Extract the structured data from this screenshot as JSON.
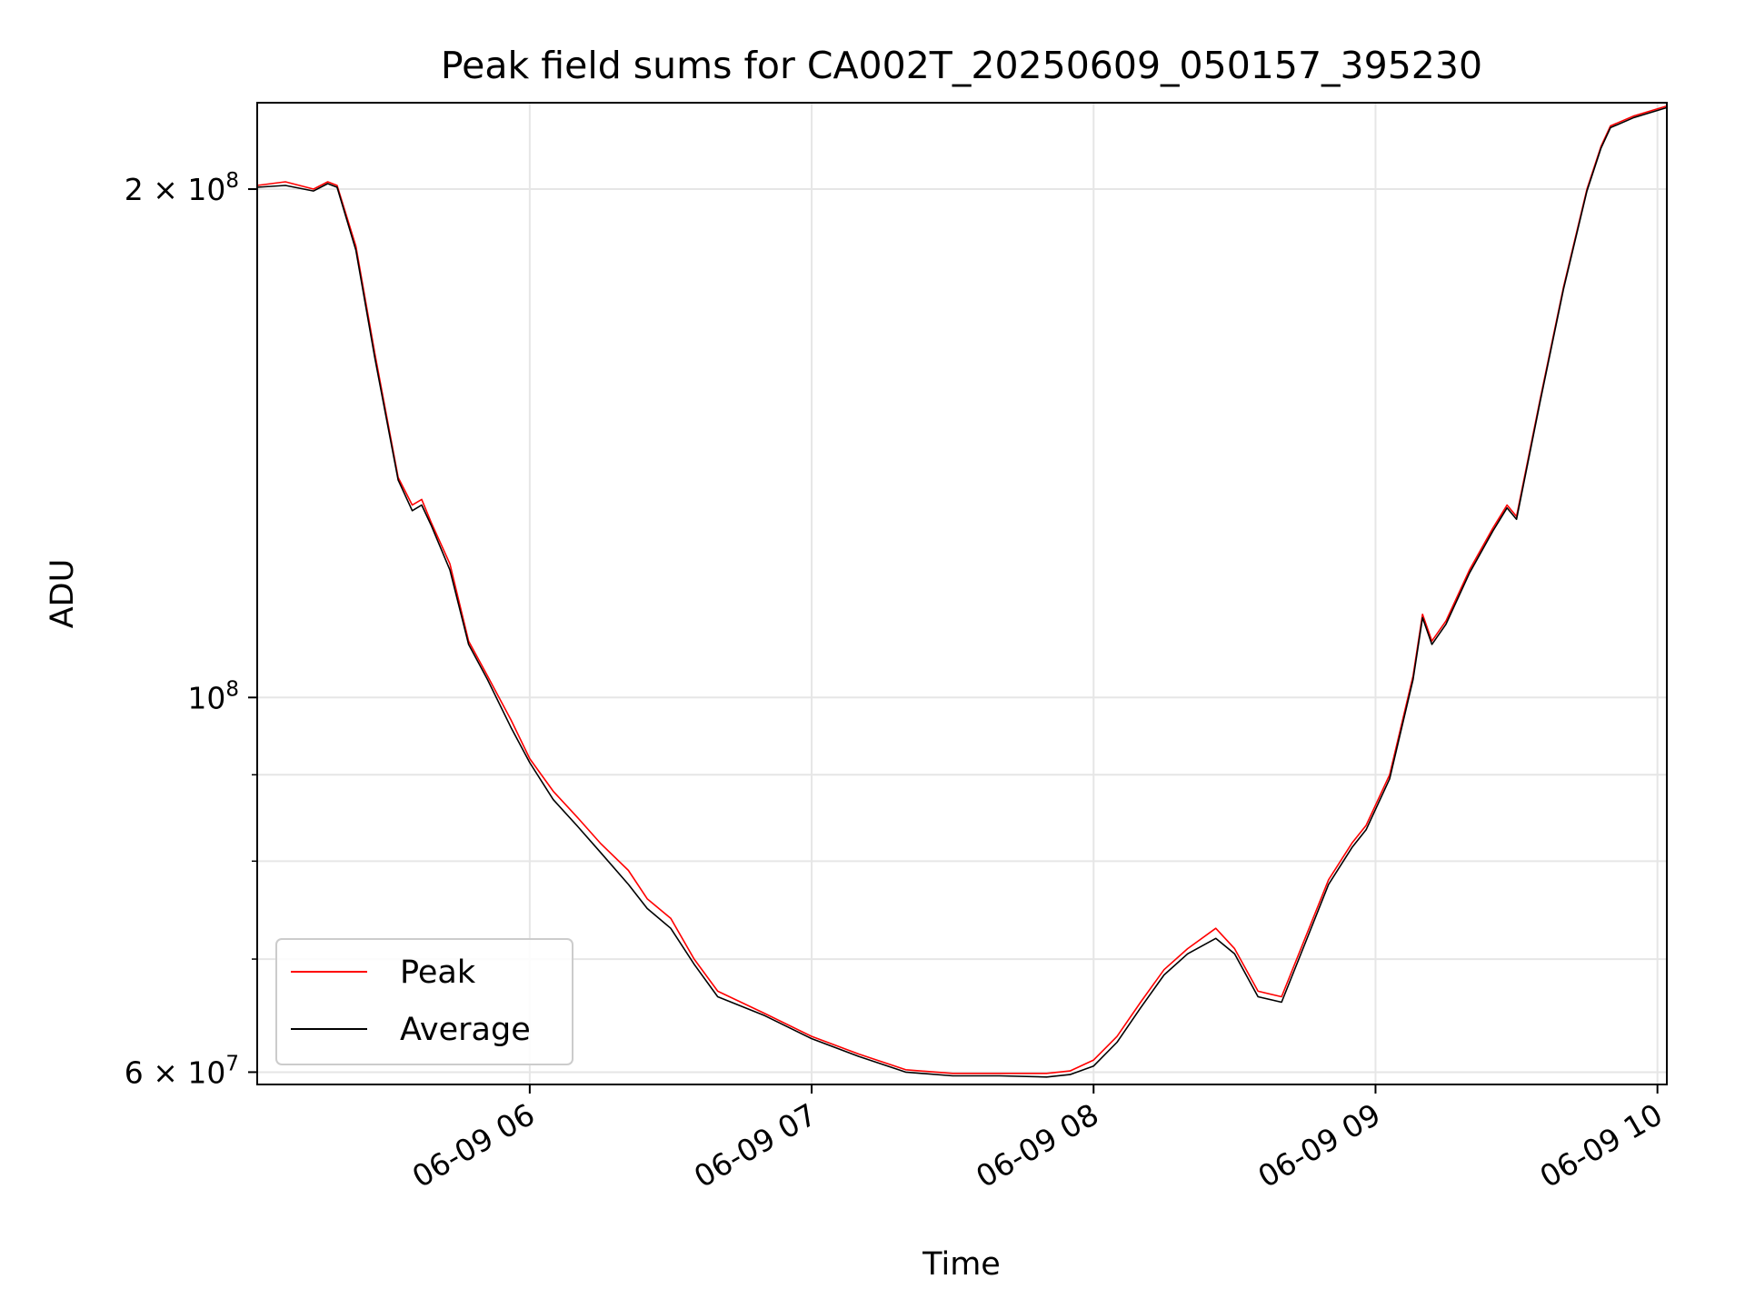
{
  "chart_data": {
    "type": "line",
    "title": "Peak field sums for CA002T_20250609_050157_395230",
    "xlabel": "Time",
    "ylabel": "ADU",
    "y_scale": "log",
    "grid": true,
    "legend_position": "lower-left",
    "x_range": [
      "2025-06-09 05:02",
      "2025-06-09 10:02"
    ],
    "ylim": [
      59000000,
      225000000
    ],
    "x_ticks": [
      {
        "value": "2025-06-09 06:00",
        "label": "06-09 06"
      },
      {
        "value": "2025-06-09 07:00",
        "label": "06-09 07"
      },
      {
        "value": "2025-06-09 08:00",
        "label": "06-09 08"
      },
      {
        "value": "2025-06-09 09:00",
        "label": "06-09 09"
      },
      {
        "value": "2025-06-09 10:00",
        "label": "06-09 10"
      }
    ],
    "y_ticks": [
      {
        "value": 200000000,
        "label": "2 × 10",
        "exp": "8"
      },
      {
        "value": 100000000,
        "label": "10",
        "exp": "8"
      },
      {
        "value": 60000000,
        "label": "6 × 10",
        "exp": "7"
      }
    ],
    "y_minor_ticks": [
      70000000,
      80000000,
      90000000
    ],
    "colors": {
      "peak": "#ff0000",
      "average": "#000000",
      "grid": "#e6e6e6"
    },
    "series": [
      {
        "name": "Peak",
        "color": "#ff0000",
        "x": [
          "2025-06-09 05:02",
          "2025-06-09 05:08",
          "2025-06-09 05:14",
          "2025-06-09 05:17",
          "2025-06-09 05:19",
          "2025-06-09 05:23",
          "2025-06-09 05:27",
          "2025-06-09 05:32",
          "2025-06-09 05:35",
          "2025-06-09 05:37",
          "2025-06-09 05:39",
          "2025-06-09 05:43",
          "2025-06-09 05:47",
          "2025-06-09 05:51",
          "2025-06-09 05:56",
          "2025-06-09 06:00",
          "2025-06-09 06:05",
          "2025-06-09 06:10",
          "2025-06-09 06:15",
          "2025-06-09 06:21",
          "2025-06-09 06:25",
          "2025-06-09 06:30",
          "2025-06-09 06:35",
          "2025-06-09 06:40",
          "2025-06-09 06:50",
          "2025-06-09 07:00",
          "2025-06-09 07:10",
          "2025-06-09 07:20",
          "2025-06-09 07:30",
          "2025-06-09 07:40",
          "2025-06-09 07:50",
          "2025-06-09 07:55",
          "2025-06-09 08:00",
          "2025-06-09 08:05",
          "2025-06-09 08:10",
          "2025-06-09 08:15",
          "2025-06-09 08:20",
          "2025-06-09 08:26",
          "2025-06-09 08:30",
          "2025-06-09 08:35",
          "2025-06-09 08:40",
          "2025-06-09 08:45",
          "2025-06-09 08:50",
          "2025-06-09 08:55",
          "2025-06-09 08:58",
          "2025-06-09 09:03",
          "2025-06-09 09:08",
          "2025-06-09 09:10",
          "2025-06-09 09:12",
          "2025-06-09 09:15",
          "2025-06-09 09:20",
          "2025-06-09 09:25",
          "2025-06-09 09:28",
          "2025-06-09 09:30",
          "2025-06-09 09:35",
          "2025-06-09 09:40",
          "2025-06-09 09:45",
          "2025-06-09 09:48",
          "2025-06-09 09:50",
          "2025-06-09 09:55",
          "2025-06-09 10:02"
        ],
        "values": [
          201000000,
          202000000,
          200000000,
          202000000,
          201000000,
          185000000,
          160000000,
          135000000,
          130000000,
          131000000,
          127000000,
          120000000,
          108000000,
          103000000,
          97000000,
          92000000,
          88000000,
          85000000,
          82000000,
          79000000,
          76000000,
          74000000,
          70000000,
          67000000,
          65000000,
          63000000,
          61500000,
          60200000,
          59900000,
          59900000,
          59900000,
          60100000,
          61000000,
          63000000,
          66000000,
          69000000,
          71000000,
          73000000,
          71000000,
          67000000,
          66500000,
          72000000,
          78000000,
          82000000,
          84000000,
          90000000,
          103000000,
          112000000,
          108000000,
          111000000,
          119000000,
          126000000,
          130000000,
          128000000,
          150000000,
          175000000,
          200000000,
          212000000,
          218000000,
          221000000,
          224000000
        ]
      },
      {
        "name": "Average",
        "color": "#000000",
        "x": [
          "2025-06-09 05:02",
          "2025-06-09 05:08",
          "2025-06-09 05:14",
          "2025-06-09 05:17",
          "2025-06-09 05:19",
          "2025-06-09 05:23",
          "2025-06-09 05:27",
          "2025-06-09 05:32",
          "2025-06-09 05:35",
          "2025-06-09 05:37",
          "2025-06-09 05:39",
          "2025-06-09 05:43",
          "2025-06-09 05:47",
          "2025-06-09 05:51",
          "2025-06-09 05:56",
          "2025-06-09 06:00",
          "2025-06-09 06:05",
          "2025-06-09 06:10",
          "2025-06-09 06:15",
          "2025-06-09 06:21",
          "2025-06-09 06:25",
          "2025-06-09 06:30",
          "2025-06-09 06:35",
          "2025-06-09 06:40",
          "2025-06-09 06:50",
          "2025-06-09 07:00",
          "2025-06-09 07:10",
          "2025-06-09 07:20",
          "2025-06-09 07:30",
          "2025-06-09 07:40",
          "2025-06-09 07:50",
          "2025-06-09 07:55",
          "2025-06-09 08:00",
          "2025-06-09 08:05",
          "2025-06-09 08:10",
          "2025-06-09 08:15",
          "2025-06-09 08:20",
          "2025-06-09 08:26",
          "2025-06-09 08:30",
          "2025-06-09 08:35",
          "2025-06-09 08:40",
          "2025-06-09 08:45",
          "2025-06-09 08:50",
          "2025-06-09 08:55",
          "2025-06-09 08:58",
          "2025-06-09 09:03",
          "2025-06-09 09:08",
          "2025-06-09 09:10",
          "2025-06-09 09:12",
          "2025-06-09 09:15",
          "2025-06-09 09:20",
          "2025-06-09 09:25",
          "2025-06-09 09:28",
          "2025-06-09 09:30",
          "2025-06-09 09:35",
          "2025-06-09 09:40",
          "2025-06-09 09:45",
          "2025-06-09 09:48",
          "2025-06-09 09:50",
          "2025-06-09 09:55",
          "2025-06-09 10:02"
        ],
        "values": [
          200500000,
          201000000,
          199500000,
          201500000,
          200500000,
          184000000,
          159000000,
          134500000,
          129000000,
          130000000,
          126500000,
          119000000,
          107500000,
          102500000,
          96000000,
          91500000,
          87000000,
          84000000,
          81000000,
          77500000,
          75000000,
          73000000,
          69500000,
          66500000,
          64800000,
          62800000,
          61300000,
          60000000,
          59700000,
          59700000,
          59600000,
          59800000,
          60500000,
          62500000,
          65500000,
          68500000,
          70500000,
          72000000,
          70500000,
          66500000,
          66000000,
          71500000,
          77500000,
          81500000,
          83500000,
          89500000,
          102500000,
          111500000,
          107500000,
          110500000,
          118500000,
          125500000,
          129500000,
          127500000,
          149500000,
          174500000,
          199500000,
          211500000,
          217500000,
          220500000,
          223500000
        ]
      }
    ]
  }
}
